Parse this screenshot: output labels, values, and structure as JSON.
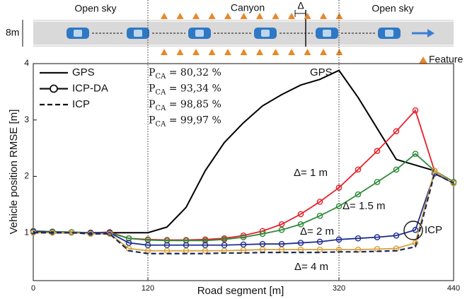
{
  "diagram": {
    "labels": [
      "Open sky",
      "Canyon",
      "Open sky"
    ],
    "delta": "Δ",
    "width": "8m",
    "feature": "Feature"
  },
  "chart_data": {
    "type": "line",
    "y_label": "Vehicle position RMSE [m]",
    "x_label": "Road segment [m]",
    "xlim": [
      0,
      440
    ],
    "xticks": [
      0,
      120,
      320,
      440
    ],
    "ylim": [
      0.15,
      4
    ],
    "yticks": [
      1,
      2,
      3,
      4
    ],
    "region_bounds": [
      120,
      320
    ],
    "legend": [
      {
        "name": "GPS",
        "style": "solid"
      },
      {
        "name": "ICP-DA",
        "style": "markers"
      },
      {
        "name": "ICP",
        "style": "dashed"
      }
    ],
    "annotations": [
      {
        "symbol": "P",
        "sub": "CA",
        "text": " = 80,32 %",
        "color": "#e8202a"
      },
      {
        "symbol": "P",
        "sub": "CA",
        "text": " = 93,34 %",
        "color": "#2e8b3a"
      },
      {
        "symbol": "P",
        "sub": "CA",
        "text": " = 98,85 %",
        "color": "#1f2f8f"
      },
      {
        "symbol": "P",
        "sub": "CA",
        "text": " = 99,97 %",
        "color": "#d9a23a"
      }
    ],
    "x": [
      0,
      20,
      40,
      60,
      80,
      100,
      120,
      140,
      160,
      180,
      200,
      220,
      240,
      260,
      280,
      300,
      320,
      340,
      360,
      380,
      400,
      420,
      440
    ],
    "series": [
      {
        "name": "GPS",
        "color": "#000000",
        "style": "solid",
        "values": [
          1.02,
          1.0,
          1.0,
          1.0,
          1.0,
          1.0,
          1.0,
          1.1,
          1.45,
          2.1,
          2.6,
          2.95,
          3.25,
          3.45,
          3.62,
          3.72,
          3.88,
          3.4,
          2.85,
          2.3,
          2.2,
          2.1,
          1.9
        ]
      },
      {
        "name": "Δ= 1 m",
        "color": "#e8202a",
        "style": "markers",
        "values": [
          1.03,
          1.02,
          1.01,
          1.0,
          1.01,
          0.9,
          0.88,
          0.87,
          0.87,
          0.88,
          0.9,
          0.95,
          1.03,
          1.15,
          1.33,
          1.55,
          1.8,
          2.12,
          2.45,
          2.8,
          3.17,
          2.1,
          1.88
        ]
      },
      {
        "name": "Δ= 1.5 m",
        "color": "#2e8b3a",
        "style": "markers",
        "values": [
          1.03,
          1.02,
          1.01,
          1.0,
          1.0,
          0.9,
          0.87,
          0.86,
          0.86,
          0.86,
          0.88,
          0.92,
          0.98,
          1.05,
          1.15,
          1.3,
          1.47,
          1.68,
          1.9,
          2.12,
          2.4,
          2.1,
          1.9
        ]
      },
      {
        "name": "Δ= 2 m",
        "color": "#1f2f8f",
        "style": "markers",
        "values": [
          1.02,
          1.01,
          1.0,
          1.0,
          1.0,
          0.82,
          0.78,
          0.78,
          0.78,
          0.78,
          0.78,
          0.79,
          0.8,
          0.8,
          0.82,
          0.84,
          0.88,
          0.9,
          0.92,
          0.95,
          1.05,
          2.05,
          1.88
        ]
      },
      {
        "name": "Δ= 4 m",
        "color": "#d9a23a",
        "style": "markers",
        "values": [
          1.0,
          1.0,
          1.0,
          0.98,
          0.98,
          0.72,
          0.68,
          0.68,
          0.68,
          0.68,
          0.68,
          0.69,
          0.7,
          0.7,
          0.7,
          0.7,
          0.7,
          0.7,
          0.71,
          0.72,
          0.82,
          2.1,
          1.88
        ]
      },
      {
        "name": "ICP",
        "color": "#1c2a5a",
        "style": "dashed",
        "values": [
          1.0,
          1.0,
          1.0,
          0.98,
          0.98,
          0.68,
          0.63,
          0.63,
          0.63,
          0.63,
          0.64,
          0.64,
          0.65,
          0.65,
          0.65,
          0.65,
          0.66,
          0.66,
          0.67,
          0.68,
          0.75,
          2.05,
          1.88
        ]
      }
    ]
  }
}
